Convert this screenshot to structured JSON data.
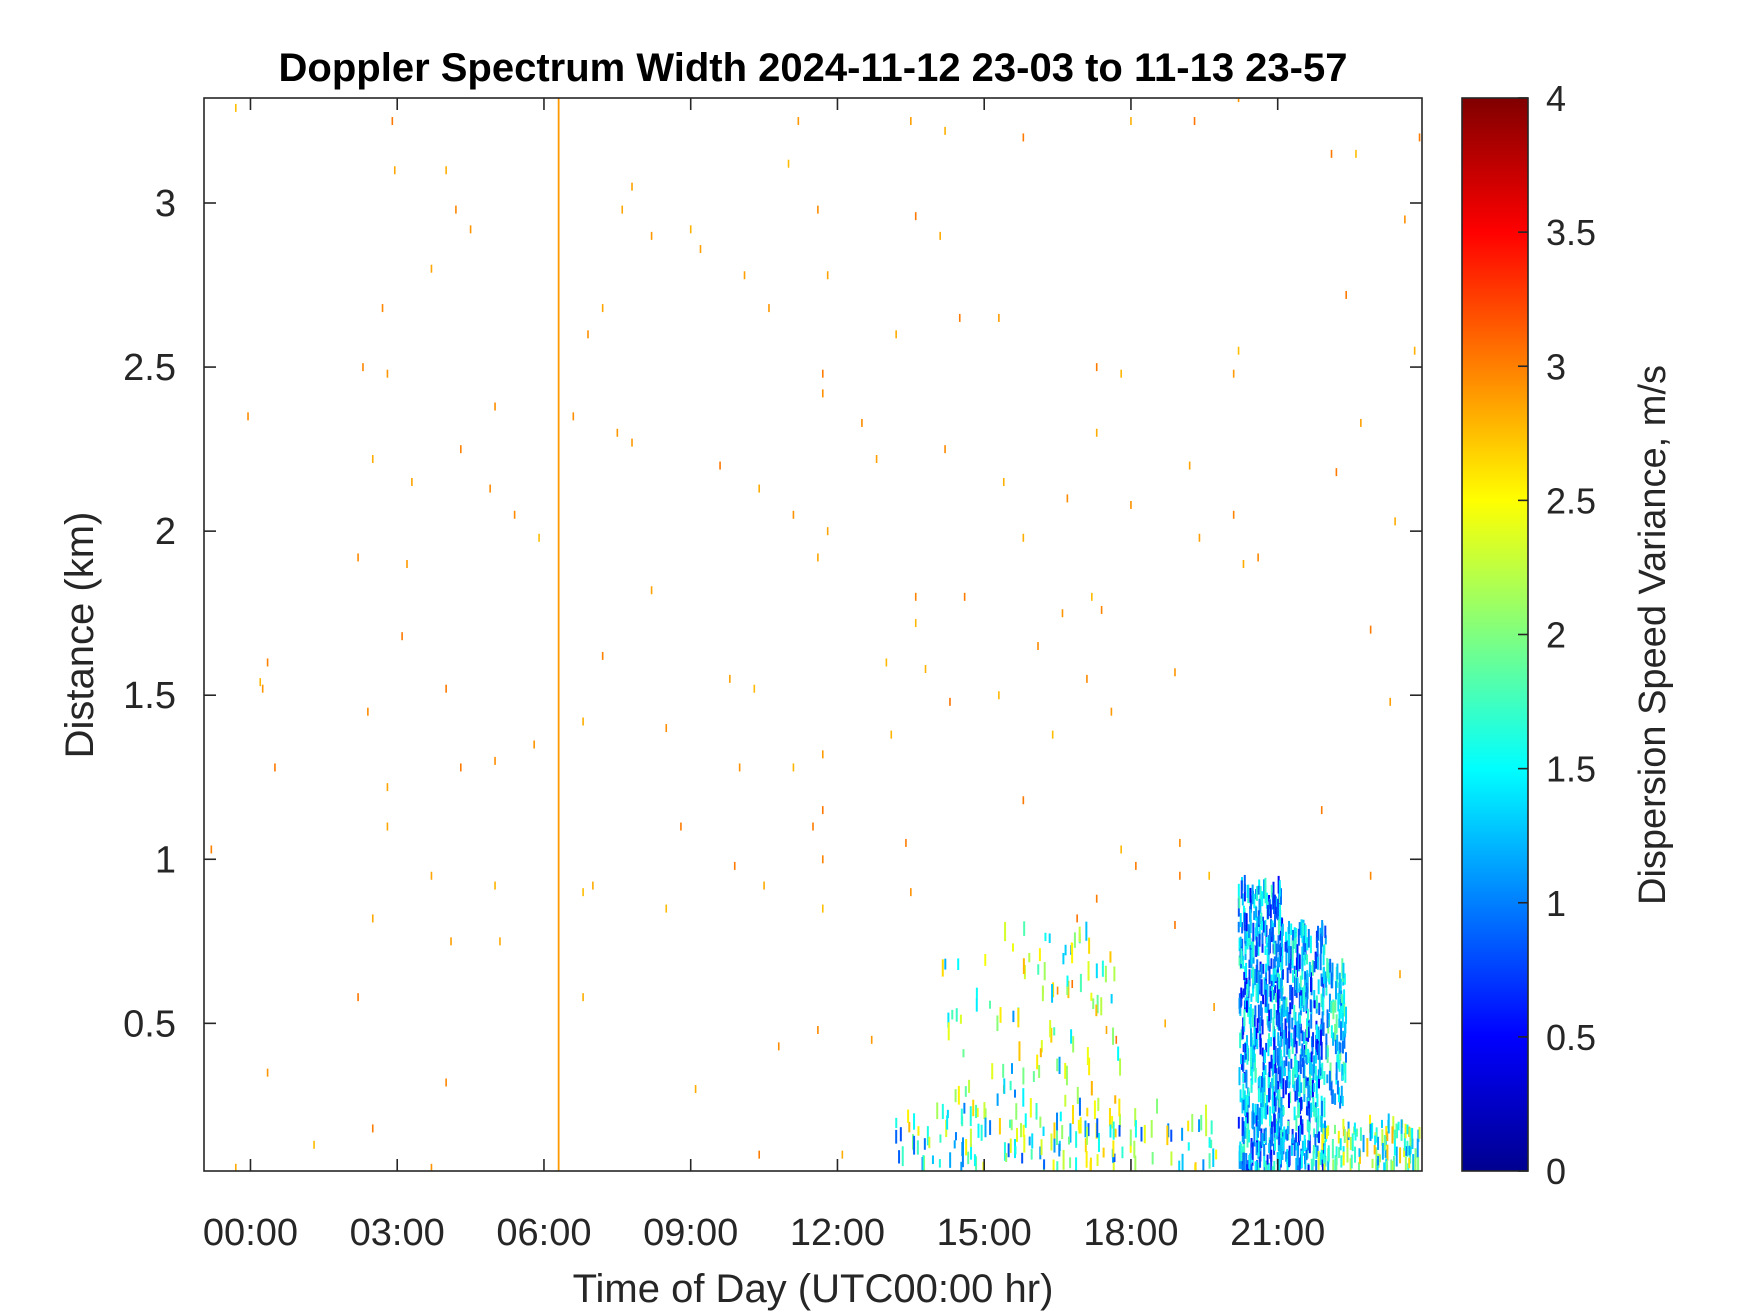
{
  "chart_data": {
    "type": "heatmap",
    "title": "Doppler Spectrum Width 2024-11-12 23-03 to 11-13 23-57",
    "xlabel": "Time of Day (UTC00:00 hr)",
    "ylabel": "Distance (km)",
    "xlim": [
      -0.95,
      23.95
    ],
    "ylim": [
      0.05,
      3.32
    ],
    "x_ticks": [
      0,
      3,
      6,
      9,
      12,
      15,
      18,
      21
    ],
    "x_tick_labels": [
      "00:00",
      "03:00",
      "06:00",
      "09:00",
      "12:00",
      "15:00",
      "18:00",
      "21:00"
    ],
    "y_ticks": [
      0.5,
      1,
      1.5,
      2,
      2.5,
      3
    ],
    "y_tick_labels": [
      "0.5",
      "1",
      "1.5",
      "2",
      "2.5",
      "3"
    ],
    "colorbar": {
      "label": "Dispersion Speed Variance, m/s",
      "colormap": "jet",
      "range": [
        0,
        4
      ],
      "ticks": [
        0,
        0.5,
        1,
        1.5,
        2,
        2.5,
        3,
        3.5,
        4
      ],
      "tick_labels": [
        "0",
        "0.5",
        "1",
        "1.5",
        "2",
        "2.5",
        "3",
        "3.5",
        "4"
      ]
    },
    "grid": false,
    "full_column_artifact": {
      "time_hr": 6.3,
      "value": 2.9
    },
    "sparse_points": [
      [
        -0.3,
        3.29
      ],
      [
        2.9,
        3.25
      ],
      [
        2.95,
        3.1
      ],
      [
        4.0,
        3.1
      ],
      [
        4.2,
        2.98
      ],
      [
        4.5,
        2.92
      ],
      [
        3.7,
        2.8
      ],
      [
        2.7,
        2.68
      ],
      [
        2.3,
        2.5
      ],
      [
        2.8,
        2.48
      ],
      [
        -0.05,
        2.35
      ],
      [
        5.0,
        2.38
      ],
      [
        4.3,
        2.25
      ],
      [
        2.5,
        2.22
      ],
      [
        3.3,
        2.15
      ],
      [
        4.9,
        2.13
      ],
      [
        5.4,
        2.05
      ],
      [
        5.9,
        1.98
      ],
      [
        2.2,
        1.92
      ],
      [
        3.2,
        1.9
      ],
      [
        3.1,
        1.68
      ],
      [
        0.35,
        1.6
      ],
      [
        0.2,
        1.54
      ],
      [
        0.25,
        1.52
      ],
      [
        4.0,
        1.52
      ],
      [
        2.4,
        1.45
      ],
      [
        5.0,
        1.3
      ],
      [
        5.8,
        1.35
      ],
      [
        0.5,
        1.28
      ],
      [
        4.3,
        1.28
      ],
      [
        2.8,
        1.22
      ],
      [
        2.8,
        1.1
      ],
      [
        -0.8,
        1.03
      ],
      [
        3.7,
        0.95
      ],
      [
        5.0,
        0.92
      ],
      [
        2.5,
        0.82
      ],
      [
        4.1,
        0.75
      ],
      [
        5.1,
        0.75
      ],
      [
        2.2,
        0.58
      ],
      [
        0.35,
        0.35
      ],
      [
        4.0,
        0.32
      ],
      [
        2.5,
        0.18
      ],
      [
        1.3,
        0.13
      ],
      [
        -0.3,
        0.06
      ],
      [
        3.7,
        0.06
      ],
      [
        11.2,
        3.25
      ],
      [
        13.5,
        3.25
      ],
      [
        14.2,
        3.22
      ],
      [
        15.8,
        3.2
      ],
      [
        11.0,
        3.12
      ],
      [
        7.8,
        3.05
      ],
      [
        7.6,
        2.98
      ],
      [
        11.6,
        2.98
      ],
      [
        13.6,
        2.96
      ],
      [
        8.2,
        2.9
      ],
      [
        9.0,
        2.92
      ],
      [
        9.2,
        2.86
      ],
      [
        14.1,
        2.9
      ],
      [
        11.8,
        2.78
      ],
      [
        10.1,
        2.78
      ],
      [
        7.2,
        2.68
      ],
      [
        10.6,
        2.68
      ],
      [
        6.9,
        2.6
      ],
      [
        13.2,
        2.6
      ],
      [
        14.5,
        2.65
      ],
      [
        15.3,
        2.65
      ],
      [
        11.7,
        2.48
      ],
      [
        11.7,
        2.42
      ],
      [
        6.6,
        2.35
      ],
      [
        7.5,
        2.3
      ],
      [
        7.8,
        2.27
      ],
      [
        12.5,
        2.33
      ],
      [
        9.6,
        2.2
      ],
      [
        12.8,
        2.22
      ],
      [
        14.2,
        2.25
      ],
      [
        10.4,
        2.13
      ],
      [
        11.1,
        2.05
      ],
      [
        11.8,
        2.0
      ],
      [
        11.6,
        1.92
      ],
      [
        8.2,
        1.82
      ],
      [
        13.6,
        1.8
      ],
      [
        14.6,
        1.8
      ],
      [
        13.6,
        1.72
      ],
      [
        7.2,
        1.62
      ],
      [
        13.0,
        1.6
      ],
      [
        9.8,
        1.55
      ],
      [
        13.8,
        1.58
      ],
      [
        10.3,
        1.52
      ],
      [
        14.3,
        1.48
      ],
      [
        6.8,
        1.42
      ],
      [
        8.5,
        1.4
      ],
      [
        13.1,
        1.38
      ],
      [
        11.7,
        1.32
      ],
      [
        10.0,
        1.28
      ],
      [
        11.1,
        1.28
      ],
      [
        11.7,
        1.15
      ],
      [
        11.5,
        1.1
      ],
      [
        8.8,
        1.1
      ],
      [
        13.4,
        1.05
      ],
      [
        9.9,
        0.98
      ],
      [
        11.7,
        1.0
      ],
      [
        10.5,
        0.92
      ],
      [
        6.8,
        0.9
      ],
      [
        7.0,
        0.92
      ],
      [
        8.5,
        0.85
      ],
      [
        11.7,
        0.85
      ],
      [
        13.5,
        0.9
      ],
      [
        6.8,
        0.58
      ],
      [
        11.6,
        0.48
      ],
      [
        12.7,
        0.45
      ],
      [
        10.8,
        0.43
      ],
      [
        9.1,
        0.3
      ],
      [
        10.4,
        0.1
      ],
      [
        12.1,
        0.1
      ],
      [
        15.4,
        0.3
      ],
      [
        17.3,
        2.5
      ],
      [
        17.8,
        2.48
      ],
      [
        20.1,
        2.48
      ],
      [
        20.2,
        2.55
      ],
      [
        22.4,
        2.72
      ],
      [
        23.6,
        2.95
      ],
      [
        22.1,
        3.15
      ],
      [
        22.6,
        3.15
      ],
      [
        23.9,
        3.2
      ],
      [
        18.0,
        3.25
      ],
      [
        19.3,
        3.25
      ],
      [
        20.2,
        3.32
      ],
      [
        16.7,
        2.1
      ],
      [
        17.3,
        2.3
      ],
      [
        15.8,
        1.98
      ],
      [
        15.4,
        2.15
      ],
      [
        16.6,
        1.75
      ],
      [
        17.2,
        1.8
      ],
      [
        17.4,
        1.76
      ],
      [
        16.1,
        1.65
      ],
      [
        17.1,
        1.55
      ],
      [
        17.6,
        1.45
      ],
      [
        16.4,
        1.38
      ],
      [
        15.3,
        1.5
      ],
      [
        15.8,
        1.18
      ],
      [
        17.8,
        1.03
      ],
      [
        19.0,
        1.05
      ],
      [
        19.0,
        0.95
      ],
      [
        19.6,
        0.95
      ],
      [
        18.1,
        0.98
      ],
      [
        17.3,
        0.88
      ],
      [
        16.9,
        0.82
      ],
      [
        18.9,
        0.8
      ],
      [
        20.1,
        2.05
      ],
      [
        19.4,
        1.98
      ],
      [
        20.3,
        1.9
      ],
      [
        20.6,
        1.92
      ],
      [
        22.2,
        2.18
      ],
      [
        22.7,
        2.33
      ],
      [
        23.4,
        2.03
      ],
      [
        23.3,
        1.48
      ],
      [
        22.9,
        1.7
      ],
      [
        18.9,
        1.57
      ],
      [
        19.2,
        2.2
      ],
      [
        18.0,
        2.08
      ],
      [
        22.9,
        0.95
      ],
      [
        23.5,
        0.65
      ],
      [
        22.1,
        0.55
      ],
      [
        19.7,
        0.55
      ],
      [
        18.7,
        0.5
      ],
      [
        17.5,
        0.48
      ],
      [
        17.7,
        0.45
      ],
      [
        16.8,
        0.62
      ],
      [
        16.5,
        0.6
      ],
      [
        16.2,
        0.6
      ],
      [
        21.9,
        1.15
      ],
      [
        23.8,
        2.55
      ]
    ],
    "clusters": [
      {
        "t0": 14.1,
        "t1": 17.8,
        "z0": 0.05,
        "z1": 0.8,
        "v0": 1.0,
        "v1": 2.8,
        "n": 140
      },
      {
        "t0": 13.2,
        "t1": 19.8,
        "z0": 0.05,
        "z1": 0.25,
        "v0": 0.8,
        "v1": 2.8,
        "n": 120
      },
      {
        "t0": 20.2,
        "t1": 21.1,
        "z0": 0.05,
        "z1": 0.93,
        "v0": 0.5,
        "v1": 1.8,
        "n": 520
      },
      {
        "t0": 21.0,
        "t1": 22.0,
        "z0": 0.05,
        "z1": 0.8,
        "v0": 0.5,
        "v1": 1.8,
        "n": 440
      },
      {
        "t0": 22.0,
        "t1": 22.4,
        "z0": 0.25,
        "z1": 0.68,
        "v0": 0.8,
        "v1": 2.0,
        "n": 90
      },
      {
        "t0": 21.8,
        "t1": 23.9,
        "z0": 0.05,
        "z1": 0.2,
        "v0": 1.0,
        "v1": 2.9,
        "n": 120
      }
    ]
  }
}
